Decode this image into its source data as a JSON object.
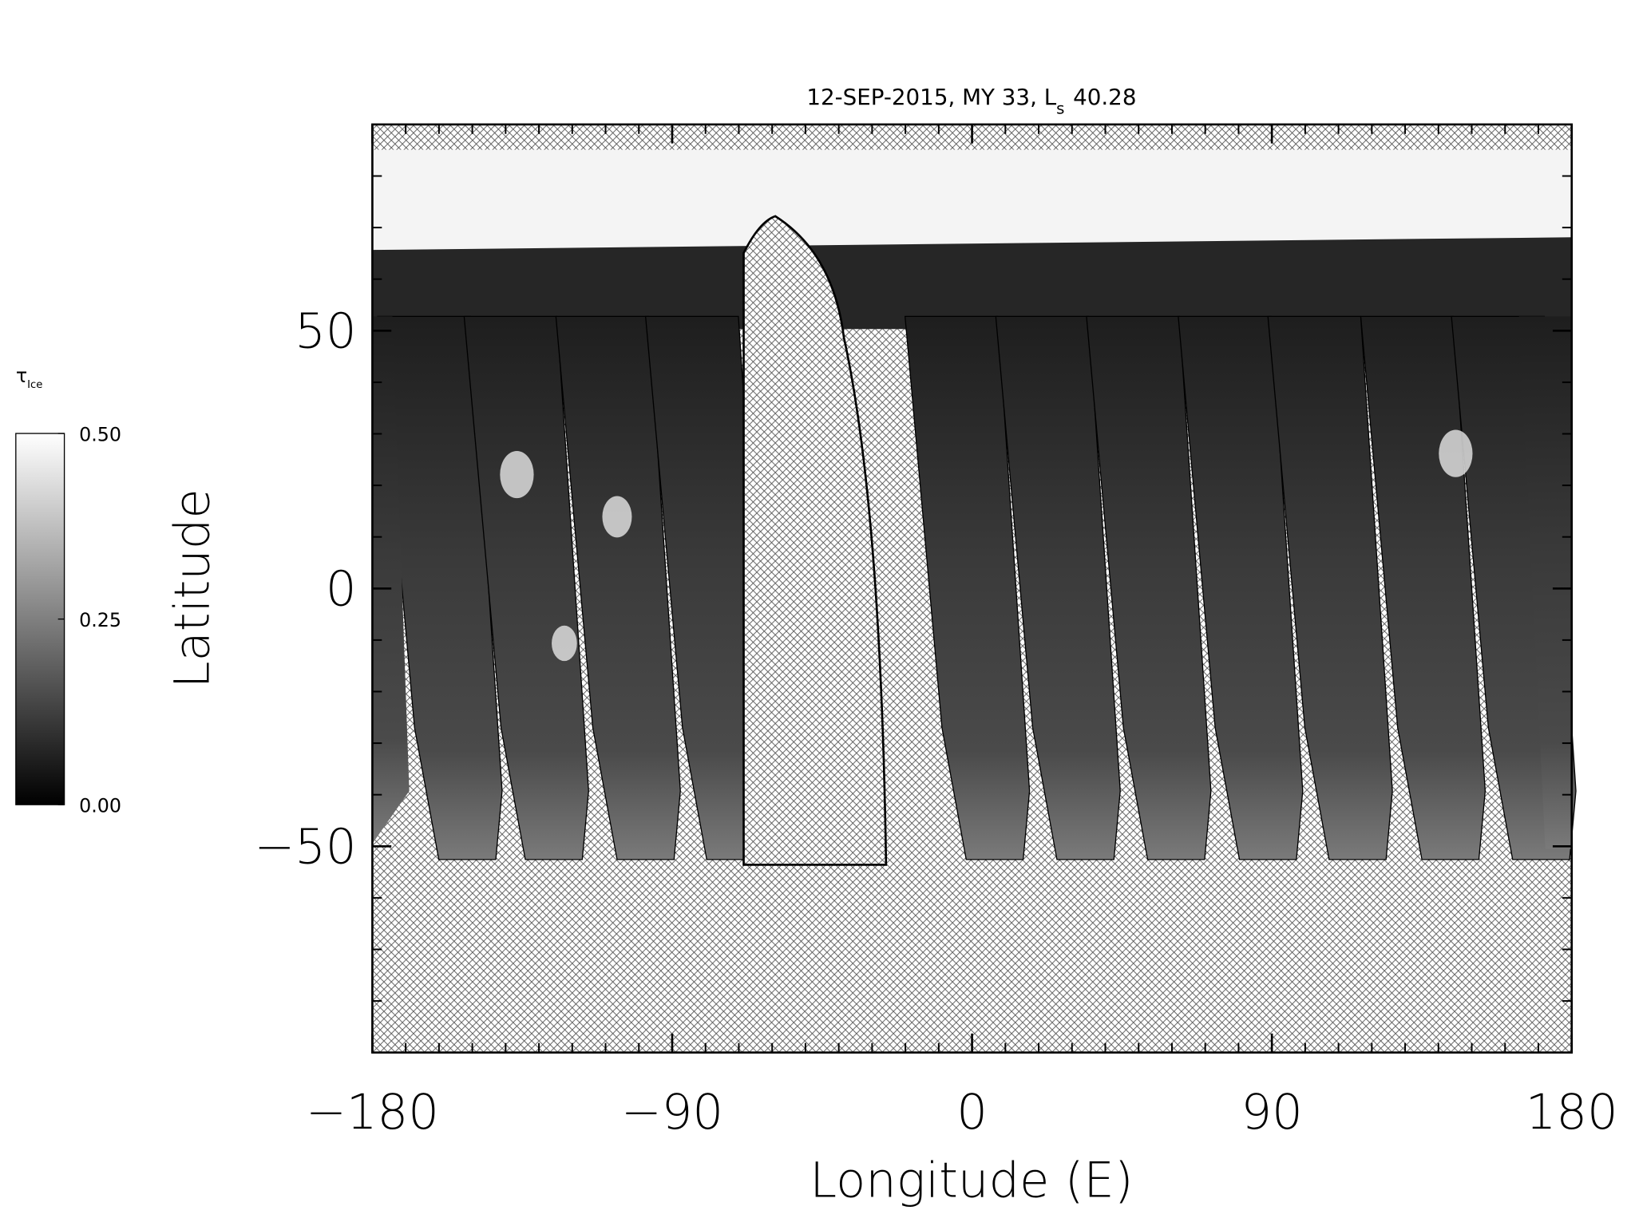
{
  "chart_data": {
    "type": "map",
    "title": "12-SEP-2015, MY 33,  L",
    "title_subscript": "s",
    "title_value": "40.28",
    "x_label": "Longitude (E)",
    "y_label": "Latitude",
    "xlim": [
      -180,
      180
    ],
    "ylim": [
      -90,
      90
    ],
    "xticks": [
      {
        "value": -180,
        "label": "−180"
      },
      {
        "value": -90,
        "label": "−90"
      },
      0,
      90,
      180
    ],
    "yticks": [
      {
        "value": -50,
        "label": "−50"
      },
      0,
      50
    ],
    "colorbar": {
      "label": "τ",
      "label_subscript": "Ice",
      "lim": [
        0,
        0.5
      ],
      "ticks": [
        {
          "value": 0,
          "label": "0.00"
        },
        {
          "value": 0.25,
          "label": "0.25"
        },
        {
          "value": 0.5,
          "label": "0.50"
        }
      ],
      "colors": [
        "#000000",
        "#ffffff"
      ]
    }
  }
}
